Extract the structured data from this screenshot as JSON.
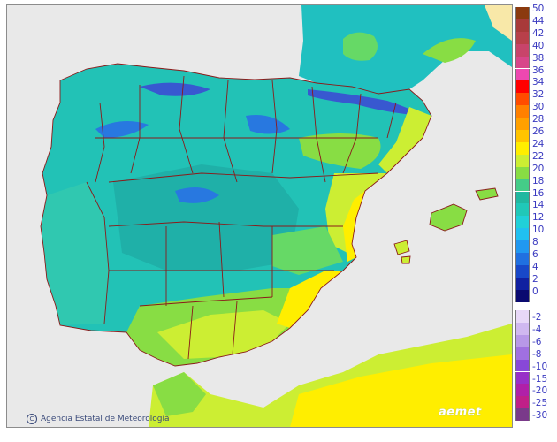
{
  "map": {
    "credit": "Agencia Estatal de Meteorología",
    "logo": "aemet",
    "colors": {
      "sea": "#e9e9e9",
      "border": "#8b1a1a",
      "frame": "#8c8c8c"
    },
    "regions_shown": [
      "Iberian Peninsula",
      "Balearic Islands",
      "Northern Africa",
      "Southern France"
    ]
  },
  "legend": {
    "positive": [
      {
        "label": "50",
        "color": "#8b3a0f"
      },
      {
        "label": "44",
        "color": "#a83a3a"
      },
      {
        "label": "42",
        "color": "#b8404a"
      },
      {
        "label": "40",
        "color": "#c8446a"
      },
      {
        "label": "38",
        "color": "#d8468a"
      },
      {
        "label": "36",
        "color": "#ee48b0"
      },
      {
        "label": "34",
        "color": "#ff0000"
      },
      {
        "label": "32",
        "color": "#ff4c00"
      },
      {
        "label": "30",
        "color": "#ff8000"
      },
      {
        "label": "28",
        "color": "#ffa000"
      },
      {
        "label": "26",
        "color": "#ffc400"
      },
      {
        "label": "24",
        "color": "#ffee00"
      },
      {
        "label": "22",
        "color": "#ccee33"
      },
      {
        "label": "20",
        "color": "#88dd44"
      },
      {
        "label": "18",
        "color": "#44cc88"
      },
      {
        "label": "16",
        "color": "#20b8a0"
      },
      {
        "label": "14",
        "color": "#20c8b8"
      },
      {
        "label": "12",
        "color": "#20d0d8"
      },
      {
        "label": "10",
        "color": "#20c0f0"
      },
      {
        "label": "8",
        "color": "#2098f0"
      },
      {
        "label": "6",
        "color": "#2070e0"
      },
      {
        "label": "4",
        "color": "#1848c8"
      },
      {
        "label": "2",
        "color": "#1020a0"
      },
      {
        "label": "0",
        "color": "#0a0a70"
      }
    ],
    "negative": [
      {
        "label": "-2",
        "color": "#e8d8f8"
      },
      {
        "label": "-4",
        "color": "#d0b8f0"
      },
      {
        "label": "-6",
        "color": "#b898e8"
      },
      {
        "label": "-8",
        "color": "#a070e0"
      },
      {
        "label": "-10",
        "color": "#8848d8"
      },
      {
        "label": "-15",
        "color": "#9830c8"
      },
      {
        "label": "-20",
        "color": "#b020a8"
      },
      {
        "label": "-25",
        "color": "#c02088"
      },
      {
        "label": "-30",
        "color": "#7a3a8a"
      }
    ]
  }
}
